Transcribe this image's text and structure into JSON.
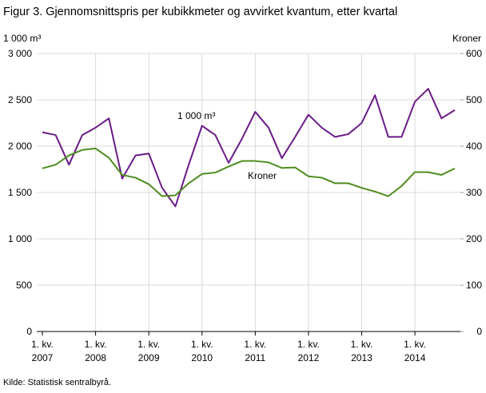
{
  "chart_data": {
    "type": "line",
    "title": "Figur 3. Gjennomsnittspris per kubikkmeter og avvirket kvantum, etter kvartal",
    "y_label": "1 000 m³",
    "y2_label": "Kroner",
    "source": "Kilde: Statistisk sentralbyrå.",
    "categories": [
      "1. kv.\n2007",
      null,
      null,
      null,
      "1. kv.\n2008",
      null,
      null,
      null,
      "1. kv.\n2009",
      null,
      null,
      null,
      "1. kv.\n2010",
      null,
      null,
      null,
      "1. kv.\n2011",
      null,
      null,
      null,
      "1. kv.\n2012",
      null,
      null,
      null,
      "1. kv.\n2013",
      null,
      null,
      null,
      "1. kv.\n2014",
      null,
      null,
      null
    ],
    "series": [
      {
        "name": "1 000 m³",
        "color": "#6a1b86",
        "axis": "y",
        "values": [
          2150,
          2120,
          1800,
          2120,
          2200,
          2300,
          1650,
          1900,
          1920,
          1550,
          1350,
          1800,
          2220,
          2120,
          1820,
          2080,
          2370,
          2200,
          1870,
          2100,
          2340,
          2200,
          2100,
          2130,
          2250,
          2550,
          2100,
          2100,
          2480,
          2620,
          2300,
          2390
        ]
      },
      {
        "name": "Kroner",
        "color": "#4e8c1e",
        "axis": "y2",
        "values": [
          352,
          360,
          380,
          392,
          395,
          375,
          338,
          332,
          318,
          292,
          294,
          320,
          340,
          343,
          356,
          368,
          368,
          365,
          353,
          354,
          335,
          332,
          320,
          320,
          310,
          302,
          292,
          314,
          344,
          344,
          338,
          352
        ]
      }
    ],
    "ylim": [
      0,
      3000
    ],
    "yticks": [
      0,
      500,
      {
        "value": 1000,
        "label": "1 000"
      },
      {
        "value": 1500,
        "label": "1 500"
      },
      {
        "value": 2000,
        "label": "2 000"
      },
      {
        "value": 2500,
        "label": "2 500"
      },
      {
        "value": 3000,
        "label": "3 000"
      }
    ],
    "y2lim": [
      0,
      600
    ],
    "y2ticks": [
      0,
      100,
      200,
      300,
      400,
      500,
      600
    ],
    "grid": true
  }
}
